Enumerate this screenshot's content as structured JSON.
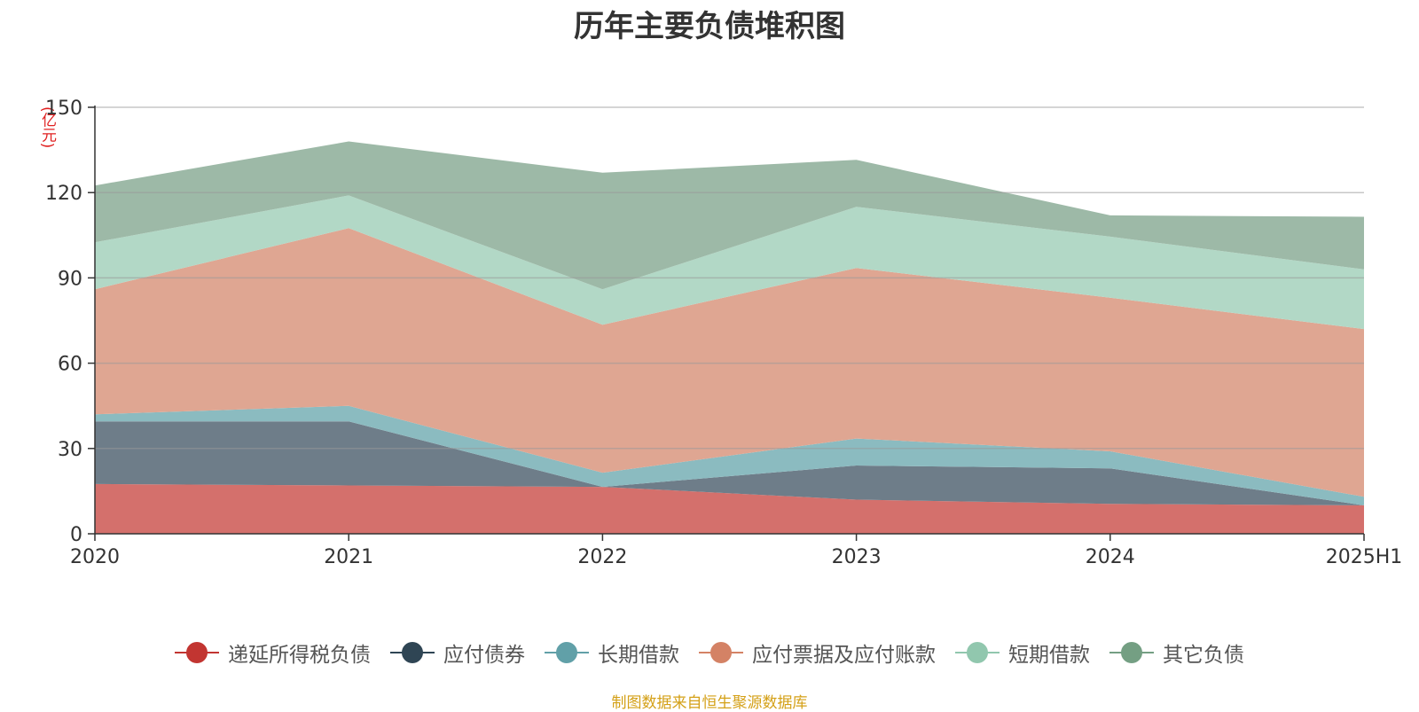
{
  "chart_data": {
    "type": "area",
    "stacked": true,
    "title": "历年主要负债堆积图",
    "ylabel": "(亿元)",
    "xlabel": "",
    "categories": [
      "2020",
      "2021",
      "2022",
      "2023",
      "2024",
      "2025H1"
    ],
    "ylim": [
      0,
      150
    ],
    "yticks": [
      0,
      30,
      60,
      90,
      120,
      150
    ],
    "grid": true,
    "legend_position": "bottom",
    "series": [
      {
        "name": "递延所得税负债",
        "color": "#c23531",
        "fill": "#d4706c",
        "values": [
          17.5,
          17.0,
          16.5,
          12.0,
          10.5,
          10.0
        ]
      },
      {
        "name": "应付债券",
        "color": "#2f4554",
        "fill": "#6e7d89",
        "values": [
          22.0,
          22.5,
          0.0,
          12.0,
          12.5,
          0.0
        ]
      },
      {
        "name": "长期借款",
        "color": "#61a0a8",
        "fill": "#8bbbc0",
        "values": [
          2.5,
          5.5,
          5.0,
          9.5,
          6.0,
          3.0
        ]
      },
      {
        "name": "应付票据及应付账款",
        "color": "#d48265",
        "fill": "#dfa692",
        "values": [
          44.0,
          62.5,
          52.0,
          60.0,
          54.0,
          59.0
        ]
      },
      {
        "name": "短期借款",
        "color": "#91c7ae",
        "fill": "#b2d8c6",
        "values": [
          16.5,
          11.5,
          12.5,
          21.5,
          21.5,
          21.0
        ]
      },
      {
        "name": "其它负债",
        "color": "#749f83",
        "fill": "#9db9a7",
        "values": [
          20.0,
          19.0,
          41.0,
          16.5,
          7.5,
          18.5
        ]
      }
    ]
  },
  "source_text": "制图数据来自恒生聚源数据库"
}
